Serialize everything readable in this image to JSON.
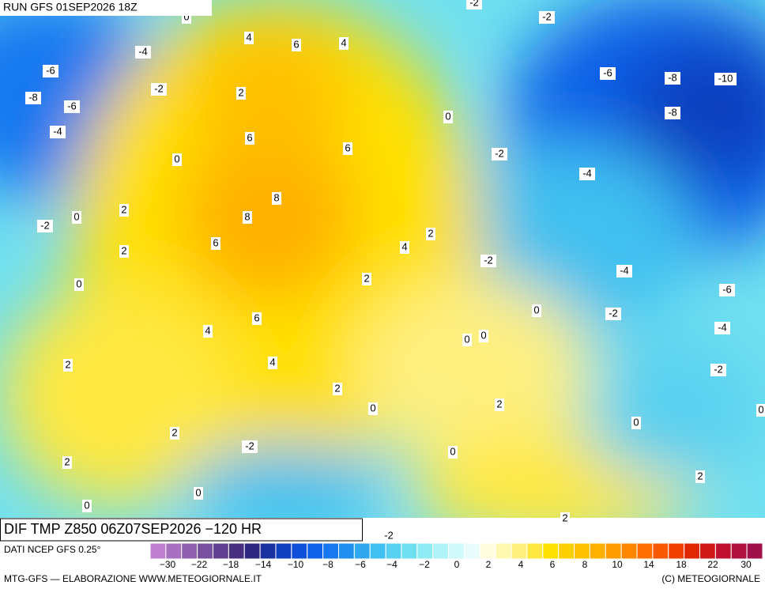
{
  "header": {
    "run": "RUN GFS 01SEP2026 18Z",
    "title": "DIF TMP Z850 06Z07SEP2026 −120 HR"
  },
  "map_labels": [
    "0",
    "-2",
    "-2",
    "4",
    "6",
    "4",
    "-4",
    "-6",
    "-6",
    "-8",
    "-10",
    "-2",
    "2",
    "-8",
    "-6",
    "-8",
    "0",
    "-4",
    "6",
    "6",
    "0",
    "-2",
    "-4",
    "8",
    "2",
    "0",
    "8",
    "-2",
    "2",
    "6",
    "4",
    "2",
    "-2",
    "-4",
    "2",
    "0",
    "-6",
    "0",
    "-2",
    "6",
    "4",
    "-4",
    "0",
    "0",
    "4",
    "2",
    "-2",
    "2",
    "0",
    "2",
    "0",
    "0",
    "2",
    "-2",
    "0",
    "2",
    "2",
    "0",
    "0",
    "2",
    "-2"
  ],
  "legend": {
    "source": "DATI NCEP GFS 0.25°",
    "colors": [
      "#c080d0",
      "#a870c0",
      "#9060b0",
      "#7850a0",
      "#604090",
      "#483080",
      "#302880",
      "#1830a0",
      "#1040c0",
      "#1050d8",
      "#1060e8",
      "#1878f0",
      "#2090f0",
      "#30a8f0",
      "#40c0f0",
      "#58d0f0",
      "#70e0f0",
      "#90ecf4",
      "#b0f4f8",
      "#d0fafa",
      "#e8fcfc",
      "#fffce0",
      "#fff8b0",
      "#fff080",
      "#ffe840",
      "#ffe000",
      "#ffd000",
      "#ffc000",
      "#ffb000",
      "#ff9c00",
      "#ff8800",
      "#ff7000",
      "#f85800",
      "#f04000",
      "#e02800",
      "#d01818",
      "#c01030",
      "#b01040",
      "#a01048"
    ],
    "labels": [
      "−30",
      "−22",
      "−18",
      "−14",
      "−10",
      "−8",
      "−6",
      "−4",
      "−2",
      "0",
      "2",
      "4",
      "6",
      "8",
      "10",
      "14",
      "18",
      "22",
      "30"
    ]
  },
  "footer": {
    "left": "MTG-GFS — ELABORAZIONE WWW.METEOGIORNALE.IT",
    "right": "(C) METEOGIORNALE"
  }
}
